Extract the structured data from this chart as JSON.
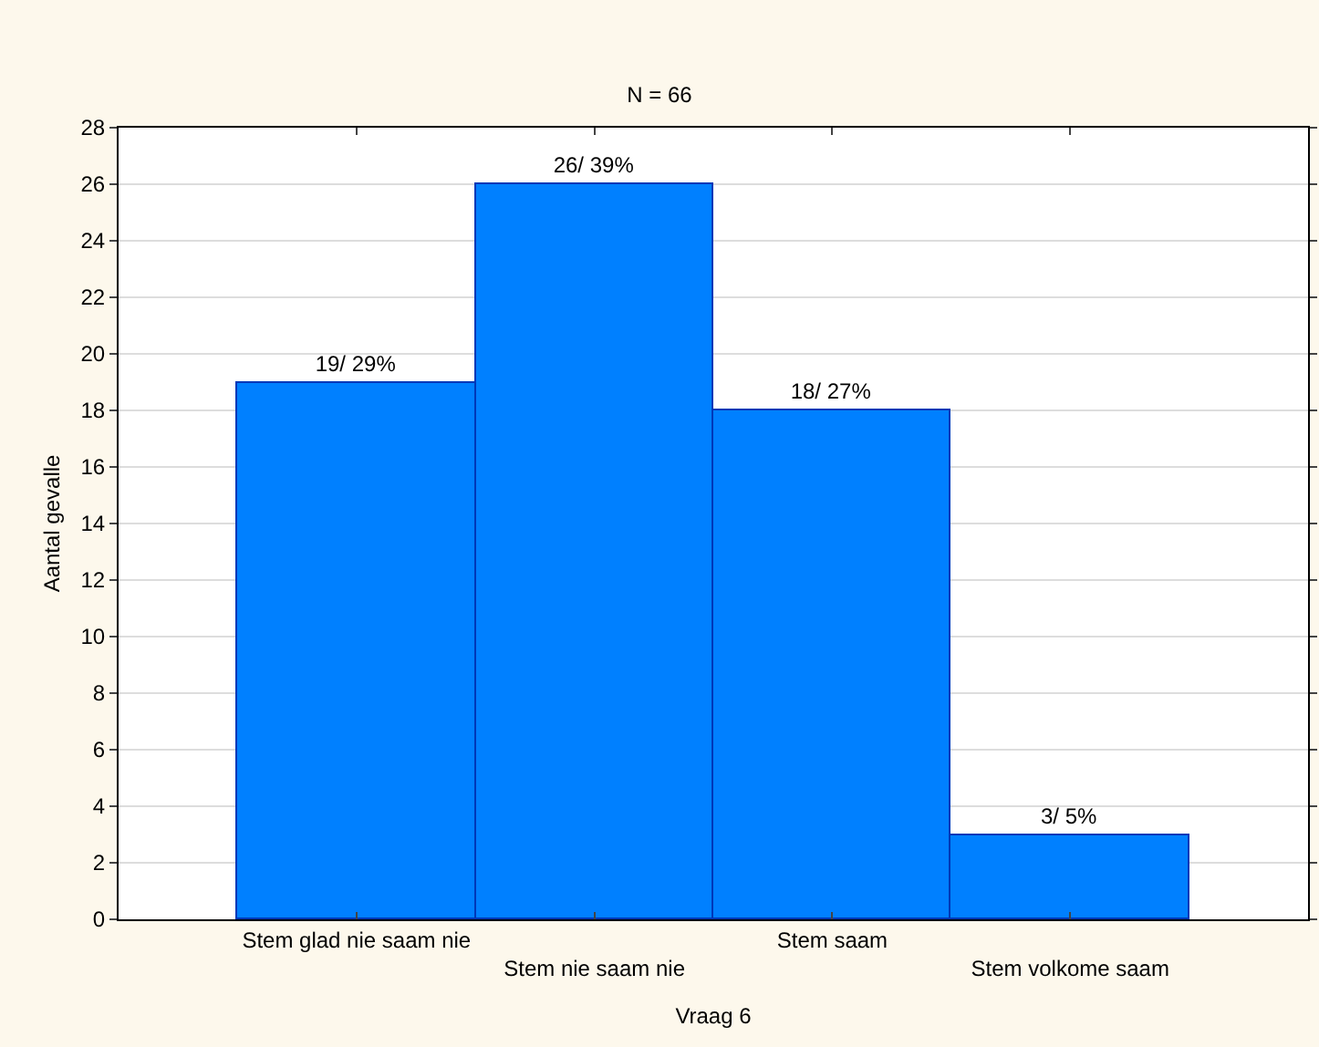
{
  "chart_data": {
    "type": "bar",
    "title": "N = 66",
    "xlabel": "Vraag 6",
    "ylabel": "Aantal gevalle",
    "categories": [
      "Stem glad nie saam nie",
      "Stem nie saam nie",
      "Stem saam",
      "Stem volkome saam"
    ],
    "values": [
      19,
      26,
      18,
      3
    ],
    "color": "#0080ff",
    "value_labels": [
      "19/ 29%",
      "26/ 39%",
      "18/ 27%",
      "3/ 5%"
    ],
    "ylim": [
      0,
      28
    ],
    "yticks": [
      0,
      2,
      4,
      6,
      8,
      10,
      12,
      14,
      16,
      18,
      20,
      22,
      24,
      26,
      28
    ],
    "grid": "y"
  }
}
